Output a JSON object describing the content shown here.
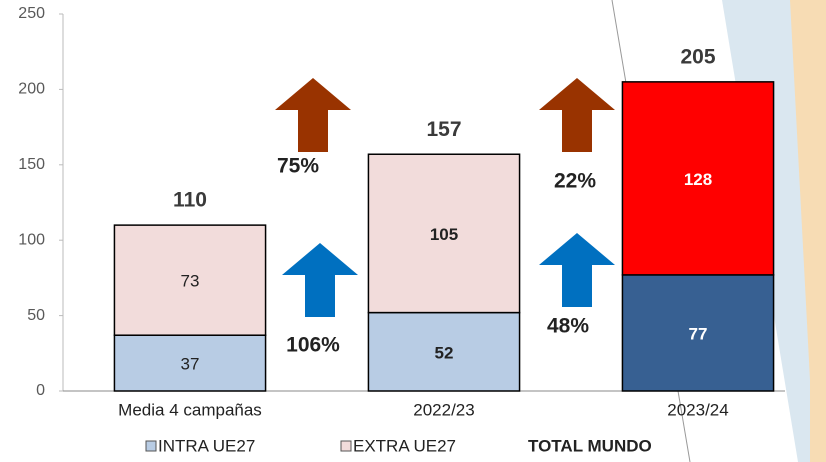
{
  "chart_data": {
    "type": "stacked_bar",
    "categories": [
      "Media 4 campañas",
      "2022/23",
      "2023/24"
    ],
    "series": [
      {
        "name": "INTRA UE27",
        "color": "#b8cce4",
        "colors": [
          "#b8cce4",
          "#b8cce4",
          "#376092"
        ],
        "label_colors": [
          "#222222",
          "#222222",
          "#ffffff"
        ],
        "values": [
          37,
          52,
          77
        ]
      },
      {
        "name": "EXTRA UE27",
        "color": "#f2dcdb",
        "colors": [
          "#f2dcdb",
          "#f2dcdb",
          "#ff0000"
        ],
        "label_colors": [
          "#222222",
          "#222222",
          "#ffffff"
        ],
        "values": [
          73,
          105,
          128
        ]
      }
    ],
    "total_name": "TOTAL MUNDO",
    "totals": [
      110,
      157,
      205
    ],
    "growth": [
      {
        "extra": "75%",
        "intra": "106%"
      },
      {
        "extra": "22%",
        "intra": "48%"
      }
    ],
    "arrow_colors": {
      "extra": "#993300",
      "intra": "#0070c0"
    },
    "ylim": [
      0,
      250
    ],
    "yticks": [
      0,
      50,
      100,
      150,
      200,
      250
    ]
  }
}
